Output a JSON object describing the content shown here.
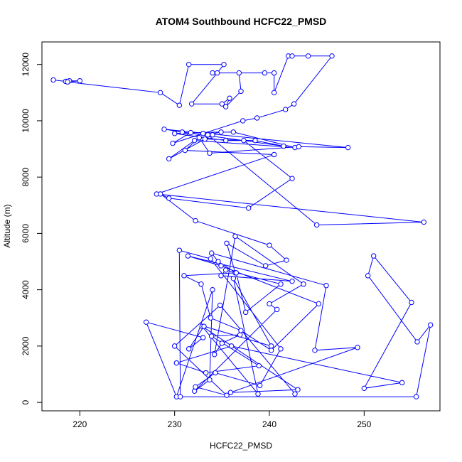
{
  "chart_data": {
    "type": "line",
    "title": "ATOM4 Southbound HCFC22_PMSD",
    "xlabel": "HCFC22_PMSD",
    "ylabel": "Altitude (m)",
    "xlim": [
      216,
      258
    ],
    "ylim": [
      -300,
      12800
    ],
    "xticks": [
      220,
      230,
      240,
      250
    ],
    "yticks": [
      0,
      2000,
      4000,
      6000,
      8000,
      10000,
      12000
    ],
    "grid": false,
    "legend": "none",
    "series_color": "#0000ff",
    "marker": "open-circle",
    "series": [
      {
        "x": [
          217.2,
          218.5,
          218.9,
          220.0,
          218.7,
          228.5,
          230.5,
          231.5,
          235.2,
          234.5,
          231.8,
          235.0,
          235.8,
          235.4,
          237.0,
          236.8,
          234.0,
          239.5,
          240.5,
          240.5,
          242.0,
          242.4,
          244.1,
          246.6,
          242.6,
          241.7,
          238.7,
          237.2,
          233.0,
          229.8,
          231.7,
          236.2,
          242.7,
          232.1,
          229.4,
          234.0,
          233.2,
          238.5,
          241.5,
          230.8,
          228.9,
          248.3,
          243.1,
          233.7,
          232.6,
          231.1,
          240.5,
          228.1,
          256.3,
          245.0,
          233.5,
          234.9,
          230.0,
          235.4,
          237.3,
          242.4,
          237.8,
          229.4,
          228.5,
          232.2,
          240.0,
          241.8,
          239.6,
          235.5,
          236.4,
          231.0,
          232.8,
          233.8,
          237.0,
          240.2,
          245.2,
          234.9,
          231.4,
          242.4,
          234.9,
          235.4,
          241.2,
          237.5,
          236.5,
          234.6,
          233.9,
          246.0,
          244.8,
          249.3,
          235.9,
          243.0,
          232.9,
          238.8,
          236.2,
          240.2,
          233.1,
          231.5,
          233.0,
          227.0,
          230.2,
          234.0,
          233.7,
          232.1,
          240.8,
          240.0,
          243.6,
          236.4,
          234.2,
          235.0,
          236.9,
          233.9,
          238.9,
          233.3,
          230.2,
          236.0,
          254.0,
          250.0,
          255.0,
          251.0,
          250.4,
          255.6,
          257.0,
          255.5,
          230.6,
          230.5,
          233.8,
          241.2,
          239.0,
          234.3,
          232.2,
          235.5,
          230.0,
          234.8,
          242.7
        ],
        "y": [
          11450,
          11400,
          11420,
          11420,
          11380,
          11000,
          10550,
          12000,
          12000,
          11700,
          10600,
          10600,
          10800,
          10500,
          11050,
          11700,
          11700,
          11700,
          11700,
          11000,
          12300,
          12300,
          12300,
          12300,
          10600,
          10400,
          10100,
          10000,
          9550,
          9200,
          9580,
          9600,
          9050,
          9300,
          8650,
          9500,
          9350,
          9300,
          9100,
          9600,
          9700,
          9050,
          9080,
          8850,
          9400,
          8950,
          8800,
          7400,
          6400,
          6300,
          9500,
          9600,
          9550,
          9300,
          9300,
          7950,
          6900,
          7250,
          7400,
          6450,
          5580,
          5050,
          4850,
          5650,
          4600,
          4500,
          4200,
          3000,
          2550,
          1850,
          3500,
          4850,
          5200,
          4300,
          4500,
          4700,
          4200,
          3200,
          4600,
          5000,
          5300,
          4150,
          1850,
          1950,
          350,
          450,
          2700,
          300,
          4400,
          2000,
          2700,
          1900,
          2300,
          2850,
          200,
          4000,
          800,
          400,
          3300,
          3500,
          4200,
          5900,
          1700,
          2100,
          2400,
          2350,
          1300,
          1050,
          1400,
          2000,
          700,
          500,
          3550,
          5200,
          4500,
          2150,
          2750,
          200,
          200,
          5400,
          5100,
          1900,
          600,
          1050,
          550,
          250,
          2000,
          3450,
          300
        ]
      }
    ]
  }
}
